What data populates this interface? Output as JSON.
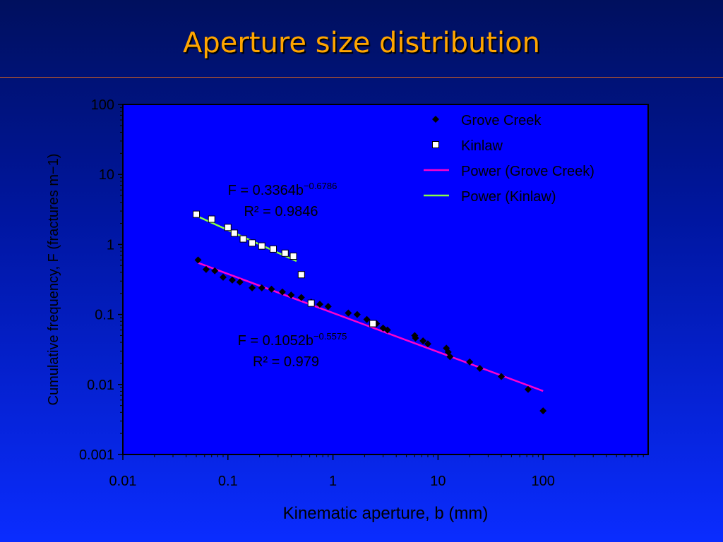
{
  "slide": {
    "title": "Aperture size distribution"
  },
  "chart_data": {
    "type": "scatter",
    "xlabel": "Kinematic aperture, b (mm)",
    "ylabel": "Cumulative frequency, F (fractures m−1)",
    "xscale": "log",
    "yscale": "log",
    "xlim": [
      0.01,
      1000
    ],
    "ylim": [
      0.001,
      100
    ],
    "x_ticks": [
      {
        "value": 0.01,
        "label": "0.01"
      },
      {
        "value": 0.1,
        "label": "0.1"
      },
      {
        "value": 1,
        "label": "1"
      },
      {
        "value": 10,
        "label": "10"
      },
      {
        "value": 100,
        "label": "100"
      }
    ],
    "y_ticks": [
      {
        "value": 0.001,
        "label": "0.001"
      },
      {
        "value": 0.01,
        "label": "0.01"
      },
      {
        "value": 0.1,
        "label": "0.1"
      },
      {
        "value": 1,
        "label": "1"
      },
      {
        "value": 10,
        "label": "10"
      },
      {
        "value": 100,
        "label": "100"
      }
    ],
    "grid": false,
    "legend": "top-right",
    "colors": {
      "plot_background": "#0000ff",
      "axis": "#000000",
      "grove_marker": "#000000",
      "kinlaw_marker": "#ffffff",
      "grove_fit": "#ff00cc",
      "kinlaw_fit": "#88ff44",
      "text": "#000000"
    },
    "series": [
      {
        "name": "Grove Creek",
        "marker": "diamond",
        "points": [
          [
            0.052,
            0.6
          ],
          [
            0.062,
            0.44
          ],
          [
            0.075,
            0.42
          ],
          [
            0.09,
            0.34
          ],
          [
            0.11,
            0.31
          ],
          [
            0.13,
            0.29
          ],
          [
            0.17,
            0.24
          ],
          [
            0.21,
            0.24
          ],
          [
            0.26,
            0.23
          ],
          [
            0.33,
            0.21
          ],
          [
            0.4,
            0.19
          ],
          [
            0.5,
            0.175
          ],
          [
            0.62,
            0.15
          ],
          [
            0.75,
            0.14
          ],
          [
            0.9,
            0.13
          ],
          [
            1.4,
            0.105
          ],
          [
            1.7,
            0.1
          ],
          [
            2.1,
            0.085
          ],
          [
            2.6,
            0.074
          ],
          [
            3.0,
            0.064
          ],
          [
            3.3,
            0.06
          ],
          [
            6.0,
            0.05
          ],
          [
            6.1,
            0.046
          ],
          [
            7.2,
            0.042
          ],
          [
            8.0,
            0.038
          ],
          [
            12.0,
            0.033
          ],
          [
            12.5,
            0.029
          ],
          [
            13.0,
            0.025
          ],
          [
            20.0,
            0.021
          ],
          [
            25.0,
            0.017
          ],
          [
            40.0,
            0.013
          ],
          [
            72.0,
            0.0085
          ],
          [
            100.0,
            0.0042
          ]
        ]
      },
      {
        "name": "Kinlaw",
        "marker": "square-open",
        "points": [
          [
            0.05,
            2.7
          ],
          [
            0.07,
            2.3
          ],
          [
            0.1,
            1.75
          ],
          [
            0.115,
            1.45
          ],
          [
            0.14,
            1.2
          ],
          [
            0.17,
            1.05
          ],
          [
            0.21,
            0.95
          ],
          [
            0.27,
            0.86
          ],
          [
            0.35,
            0.75
          ],
          [
            0.42,
            0.68
          ],
          [
            0.5,
            0.37
          ],
          [
            0.62,
            0.145
          ],
          [
            2.4,
            0.074
          ]
        ]
      },
      {
        "name": "Power (Grove Creek)",
        "type": "line",
        "fit": {
          "coefficient": 0.1052,
          "exponent": -0.5575
        },
        "x_range": [
          0.052,
          100
        ]
      },
      {
        "name": "Power (Kinlaw)",
        "type": "line",
        "fit": {
          "coefficient": 0.3364,
          "exponent": -0.6786
        },
        "x_range": [
          0.05,
          0.45
        ]
      }
    ],
    "annotations": [
      {
        "id": "kinlaw-eq",
        "base": "F = 0.3364b",
        "sup": "−0.6786",
        "r2": "R² = 0.9846"
      },
      {
        "id": "grove-eq",
        "base": "F = 0.1052b",
        "sup": "−0.5575",
        "r2": "R² = 0.979"
      }
    ]
  }
}
